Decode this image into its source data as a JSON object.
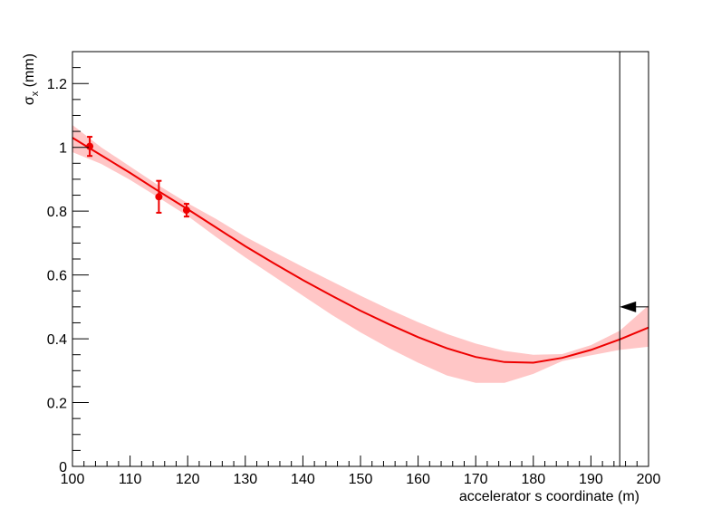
{
  "chart_data": {
    "type": "line",
    "title": "",
    "xlabel": "accelerator s coordinate (m)",
    "ylabel": "σ_x (mm)",
    "ylabel_main": "σ",
    "ylabel_sub": "x",
    "ylabel_unit": " (mm)",
    "xlim": [
      100,
      200
    ],
    "ylim": [
      0,
      1.3
    ],
    "grid": false,
    "x_ticks": [
      100,
      110,
      120,
      130,
      140,
      150,
      160,
      170,
      180,
      190,
      200
    ],
    "y_ticks": [
      0,
      0.2,
      0.4,
      0.6,
      0.8,
      1.0,
      1.2
    ],
    "y_tick_labels": [
      "0",
      "0.2",
      "0.4",
      "0.6",
      "0.8",
      "1",
      "1.2"
    ],
    "series": [
      {
        "kind": "fit_curve",
        "color": "#ee0000",
        "x": [
          100,
          105,
          110,
          115,
          120,
          125,
          130,
          135,
          140,
          145,
          150,
          155,
          160,
          165,
          170,
          175,
          180,
          185,
          190,
          195,
          200
        ],
        "y": [
          1.03,
          0.975,
          0.92,
          0.862,
          0.806,
          0.748,
          0.69,
          0.636,
          0.584,
          0.535,
          0.488,
          0.445,
          0.405,
          0.37,
          0.343,
          0.327,
          0.325,
          0.34,
          0.365,
          0.398,
          0.435
        ]
      },
      {
        "kind": "error_band",
        "color": "#ffb3b3",
        "x": [
          100,
          105,
          110,
          115,
          120,
          125,
          130,
          135,
          140,
          145,
          150,
          155,
          160,
          165,
          170,
          175,
          180,
          185,
          190,
          195,
          200
        ],
        "upper": [
          1.07,
          1.0,
          0.94,
          0.88,
          0.825,
          0.775,
          0.72,
          0.672,
          0.625,
          0.58,
          0.535,
          0.492,
          0.452,
          0.415,
          0.385,
          0.362,
          0.35,
          0.352,
          0.38,
          0.425,
          0.505
        ],
        "lower": [
          0.985,
          0.948,
          0.898,
          0.842,
          0.785,
          0.718,
          0.655,
          0.595,
          0.535,
          0.475,
          0.42,
          0.37,
          0.325,
          0.285,
          0.262,
          0.262,
          0.29,
          0.33,
          0.348,
          0.365,
          0.375
        ]
      },
      {
        "kind": "measurements",
        "color": "#ee0000",
        "points": [
          {
            "x": 103,
            "y": 1.003,
            "err": 0.03
          },
          {
            "x": 115,
            "y": 0.845,
            "err": 0.05
          },
          {
            "x": 119.8,
            "y": 0.803,
            "err": 0.02
          }
        ]
      }
    ],
    "annotations": [
      {
        "kind": "vertical_line",
        "x": 195,
        "color": "#000000"
      },
      {
        "kind": "arrow",
        "x_from": 200,
        "x_to": 195,
        "y": 0.5,
        "color": "#000000"
      }
    ]
  }
}
